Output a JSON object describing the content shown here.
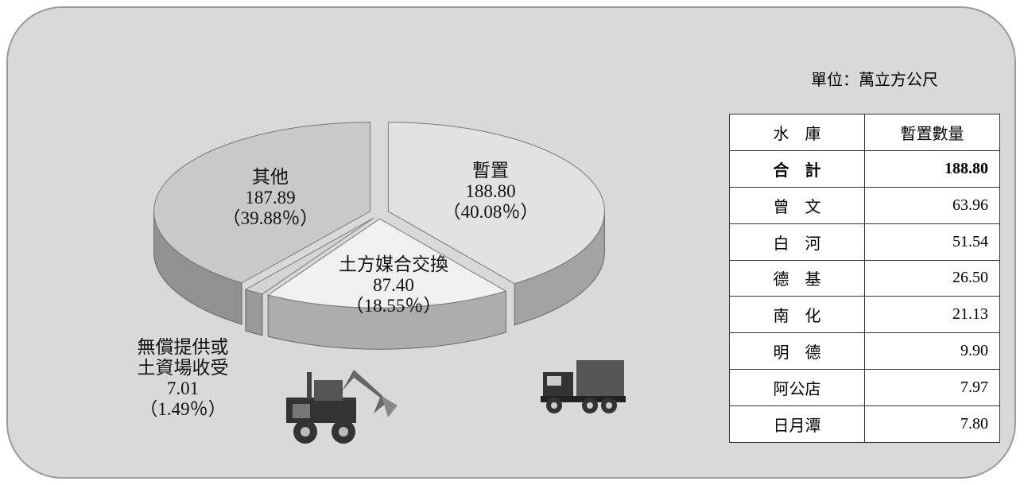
{
  "chart_data": {
    "type": "pie",
    "categories": [
      "暫置",
      "土方媒合交換",
      "無償提供或土資場收受",
      "其他"
    ],
    "values": [
      188.8,
      87.4,
      7.01,
      187.89
    ],
    "value_labels": [
      "188.80",
      "87.40",
      "7.01",
      "187.89"
    ],
    "percent_labels": [
      "（40.08％）",
      "（18.55％）",
      "（1.49％）",
      "（39.88％）"
    ],
    "colors": [
      "#e2e2e2",
      "#f0f0f0",
      "#d4d4d4",
      "#c9c9c9"
    ]
  },
  "table": {
    "unit": "單位：萬立方公尺",
    "header": [
      "水　庫",
      "暫置數量"
    ],
    "rows": [
      [
        "合　計",
        "188.80"
      ],
      [
        "曾　文",
        "63.96"
      ],
      [
        "白　河",
        "51.54"
      ],
      [
        "德　基",
        "26.50"
      ],
      [
        "南　化",
        "21.13"
      ],
      [
        "明　德",
        "9.90"
      ],
      [
        "阿公店",
        "7.97"
      ],
      [
        "日月潭",
        "7.80"
      ]
    ]
  }
}
